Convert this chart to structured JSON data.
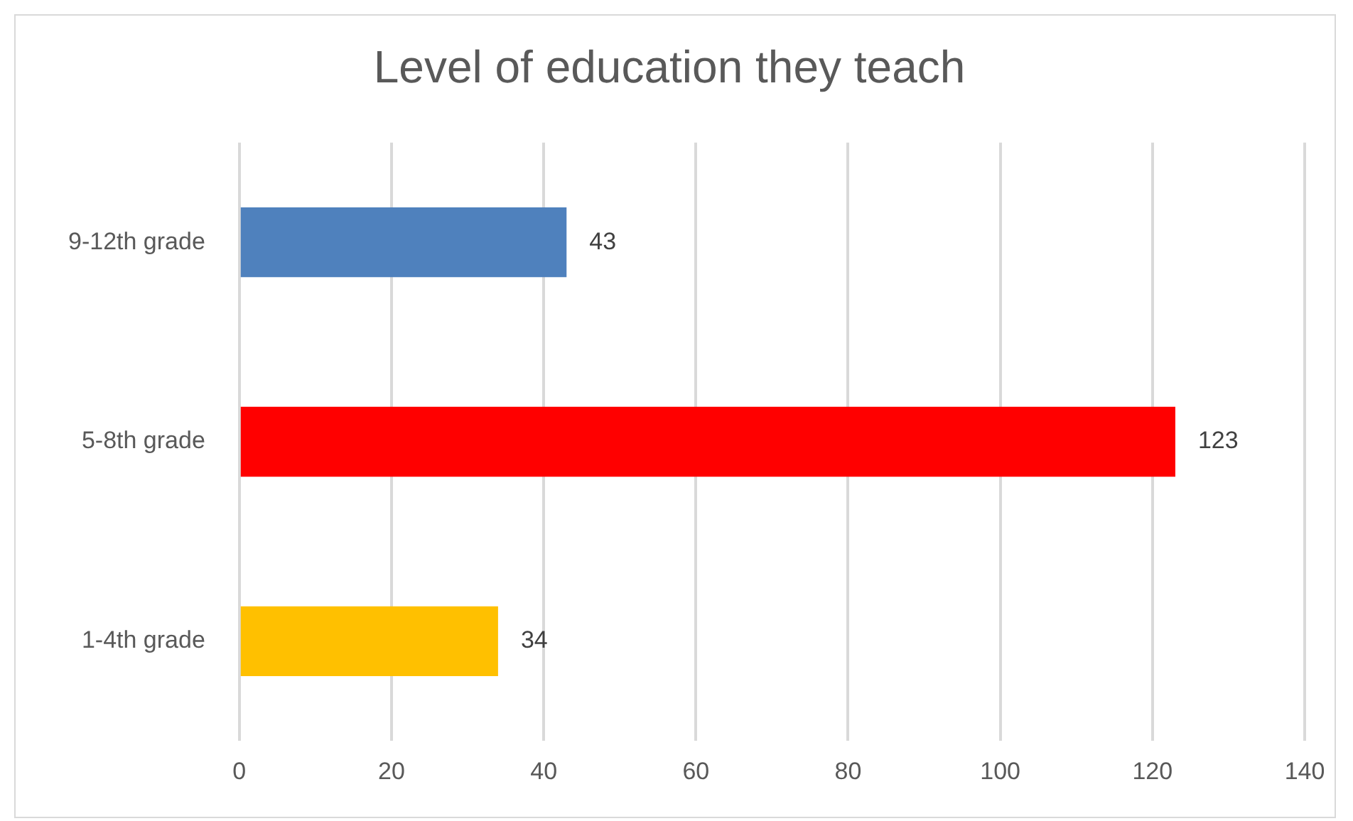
{
  "chart_data": {
    "type": "bar",
    "orientation": "horizontal",
    "title": "Level of education they teach",
    "categories": [
      "9-12th grade",
      "5-8th grade",
      "1-4th grade"
    ],
    "values": [
      43,
      123,
      34
    ],
    "colors": [
      "#4f81bd",
      "#ff0000",
      "#ffc000"
    ],
    "xlim": [
      0,
      140
    ],
    "xticks": [
      0,
      20,
      40,
      60,
      80,
      100,
      120,
      140
    ],
    "grid": "x",
    "legend": false,
    "data_labels": true
  }
}
